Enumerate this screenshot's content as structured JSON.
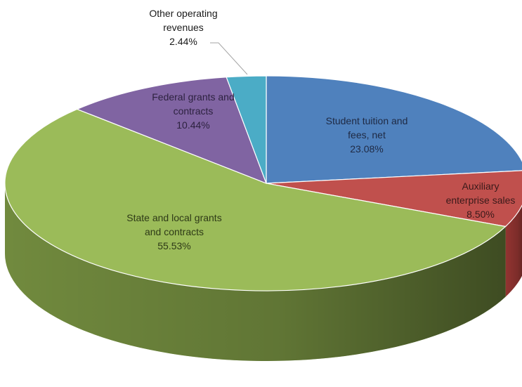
{
  "chart_data": {
    "type": "pie",
    "style": "3d",
    "title": "",
    "legend": "none",
    "slices": [
      {
        "name": "student-tuition",
        "label_lines": [
          "Student tuition and",
          "fees, net"
        ],
        "value": 23.08,
        "value_label": "23.08%",
        "color": "#4f81bd",
        "side_color": "#2c4d75",
        "label_color": "#1f2a44"
      },
      {
        "name": "auxiliary-enterprise",
        "label_lines": [
          "Auxiliary",
          "enterprise sales"
        ],
        "value": 8.5,
        "value_label": "8.50%",
        "color": "#c0504d",
        "side_color": "#6b1d1b",
        "label_color": "#3a1a1a"
      },
      {
        "name": "state-local-grants",
        "label_lines": [
          "State and local grants",
          "and contracts"
        ],
        "value": 55.53,
        "value_label": "55.53%",
        "color": "#9bbb59",
        "side_color": "#4f6228",
        "label_color": "#2e3a17"
      },
      {
        "name": "federal-grants",
        "label_lines": [
          "Federal grants and",
          "contracts"
        ],
        "value": 10.44,
        "value_label": "10.44%",
        "color": "#8064a2",
        "side_color": "#3f3151",
        "label_color": "#2d2240"
      },
      {
        "name": "other-operating",
        "label_lines": [
          "Other operating",
          "revenues"
        ],
        "value": 2.44,
        "value_label": "2.44%",
        "color": "#4bacc6",
        "side_color": "#215968",
        "label_color": "#1a1a1a"
      }
    ]
  }
}
